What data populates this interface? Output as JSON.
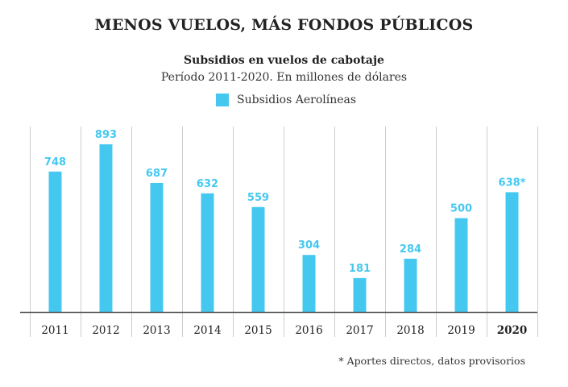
{
  "headline": "MENOS VUELOS, MÁS FONDOS PÚBLICOS",
  "colors": {
    "bar": "#45c8f0",
    "grid": "#cccccc",
    "axis": "#555555",
    "label_text": "#222222"
  },
  "chart_data": {
    "type": "bar",
    "title": "Subsidios en vuelos de cabotaje",
    "subtitle": "Período 2011-2020. En millones de dólares",
    "categories": [
      "2011",
      "2012",
      "2013",
      "2014",
      "2015",
      "2016",
      "2017",
      "2018",
      "2019",
      "2020"
    ],
    "series": [
      {
        "name": "Subsidios Aerolíneas",
        "values": [
          748,
          893,
          687,
          632,
          559,
          304,
          181,
          284,
          500,
          638
        ],
        "labels": [
          "748",
          "893",
          "687",
          "632",
          "559",
          "304",
          "181",
          "284",
          "500",
          "638*"
        ]
      }
    ],
    "highlight_category": "2020",
    "ylim": [
      0,
      893
    ],
    "xlabel": "",
    "ylabel": "",
    "grid": true,
    "legend_position": "top-center"
  },
  "footnote": "* Aportes directos, datos provisorios"
}
